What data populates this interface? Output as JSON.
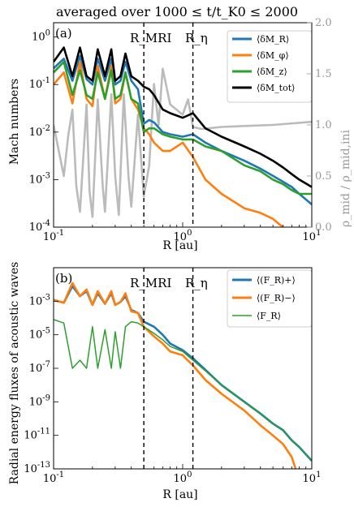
{
  "figure": {
    "title": "averaged over 1000 ≤ t/t_K0 ≤ 2000"
  },
  "chart_data": [
    {
      "panel": "(a)",
      "type": "line",
      "x_scale": "log",
      "y_scale": "log",
      "xlim": [
        0.1,
        10
      ],
      "ylim": [
        0.0001,
        2
      ],
      "y2lim": [
        0,
        2
      ],
      "xlabel": "R [au]",
      "ylabel": "Mach numbers",
      "y2label": "ρ_mid / ρ_mid,ini",
      "xticks": [
        "10^-1",
        "10^0",
        "10^1"
      ],
      "yticks": [
        "10^-4",
        "10^-3",
        "10^-2",
        "10^-1",
        "10^0"
      ],
      "y2ticks": [
        "0.0",
        "0.5",
        "1.0",
        "1.5",
        "2.0"
      ],
      "vlines": [
        {
          "label": "R_MRI",
          "x": 0.5
        },
        {
          "label": "R_η",
          "x": 1.2
        }
      ],
      "legend": "upper right",
      "series": [
        {
          "name": "⟨δM_R⟩",
          "color": "#1f77b4",
          "x": [
            0.1,
            0.12,
            0.14,
            0.16,
            0.18,
            0.2,
            0.22,
            0.25,
            0.28,
            0.3,
            0.33,
            0.36,
            0.4,
            0.45,
            0.5,
            0.55,
            0.6,
            0.7,
            0.8,
            1.0,
            1.2,
            1.5,
            2,
            3,
            4,
            5,
            6,
            7,
            8,
            10
          ],
          "y": [
            0.22,
            0.35,
            0.12,
            0.4,
            0.13,
            0.1,
            0.35,
            0.12,
            0.35,
            0.1,
            0.12,
            0.3,
            0.12,
            0.08,
            0.015,
            0.018,
            0.016,
            0.01,
            0.009,
            0.008,
            0.009,
            0.006,
            0.004,
            0.0025,
            0.0017,
            0.0012,
            0.0009,
            0.0007,
            0.0005,
            0.0003
          ]
        },
        {
          "name": "⟨δM_φ⟩",
          "color": "#ff7f0e",
          "x": [
            0.1,
            0.12,
            0.14,
            0.16,
            0.18,
            0.2,
            0.22,
            0.25,
            0.28,
            0.3,
            0.33,
            0.36,
            0.4,
            0.45,
            0.5,
            0.55,
            0.6,
            0.7,
            0.8,
            1.0,
            1.2,
            1.5,
            2,
            3,
            4,
            5,
            5.5,
            6
          ],
          "y": [
            0.1,
            0.18,
            0.04,
            0.3,
            0.05,
            0.035,
            0.25,
            0.05,
            0.25,
            0.04,
            0.05,
            0.18,
            0.05,
            0.03,
            0.012,
            0.009,
            0.006,
            0.004,
            0.004,
            0.006,
            0.003,
            0.001,
            0.0005,
            0.00025,
            0.0002,
            0.00015,
            0.00012,
            0.0001
          ]
        },
        {
          "name": "⟨δM_z⟩",
          "color": "#2ca02c",
          "x": [
            0.1,
            0.12,
            0.14,
            0.16,
            0.18,
            0.2,
            0.22,
            0.25,
            0.28,
            0.3,
            0.33,
            0.36,
            0.4,
            0.45,
            0.5,
            0.55,
            0.6,
            0.7,
            0.8,
            1.0,
            1.2,
            1.5,
            2,
            3,
            4,
            5,
            6,
            7,
            8,
            10
          ],
          "y": [
            0.18,
            0.3,
            0.06,
            0.2,
            0.06,
            0.05,
            0.18,
            0.05,
            0.2,
            0.05,
            0.06,
            0.18,
            0.05,
            0.04,
            0.01,
            0.012,
            0.012,
            0.009,
            0.008,
            0.007,
            0.007,
            0.005,
            0.004,
            0.002,
            0.0015,
            0.001,
            0.0008,
            0.0006,
            0.0005,
            0.0005
          ]
        },
        {
          "name": "⟨δM_tot⟩",
          "color": "#000000",
          "x": [
            0.1,
            0.12,
            0.14,
            0.16,
            0.18,
            0.2,
            0.22,
            0.25,
            0.28,
            0.3,
            0.33,
            0.36,
            0.4,
            0.45,
            0.5,
            0.55,
            0.6,
            0.7,
            0.8,
            1.0,
            1.2,
            1.5,
            2,
            3,
            4,
            5,
            6,
            7,
            8,
            10
          ],
          "y": [
            0.3,
            0.6,
            0.15,
            0.6,
            0.15,
            0.12,
            0.55,
            0.15,
            0.55,
            0.12,
            0.15,
            0.45,
            0.15,
            0.12,
            0.09,
            0.08,
            0.06,
            0.03,
            0.025,
            0.02,
            0.025,
            0.012,
            0.008,
            0.005,
            0.0035,
            0.0025,
            0.0018,
            0.0013,
            0.001,
            0.0007
          ]
        },
        {
          "name": "ρ_mid/ρ_mid,ini",
          "color": "#bbbbbb",
          "axis": "right",
          "x": [
            0.1,
            0.12,
            0.13,
            0.14,
            0.15,
            0.16,
            0.18,
            0.19,
            0.2,
            0.22,
            0.24,
            0.25,
            0.28,
            0.3,
            0.32,
            0.35,
            0.38,
            0.4,
            0.45,
            0.5,
            0.55,
            0.6,
            0.65,
            0.7,
            0.8,
            1.0,
            1.1,
            1.2,
            1.4,
            2,
            3,
            5,
            10
          ],
          "y": [
            1.0,
            0.5,
            0.9,
            1.15,
            0.4,
            0.15,
            1.2,
            0.35,
            0.1,
            1.25,
            0.4,
            0.15,
            1.3,
            0.5,
            0.12,
            1.3,
            0.5,
            0.2,
            1.1,
            0.3,
            0.6,
            1.4,
            1.0,
            1.55,
            1.2,
            1.1,
            1.25,
            0.98,
            0.96,
            0.98,
            0.99,
            1.0,
            1.03
          ]
        }
      ]
    },
    {
      "panel": "(b)",
      "type": "line",
      "x_scale": "log",
      "y_scale": "log",
      "xlim": [
        0.1,
        10
      ],
      "ylim": [
        1e-13,
        0.1
      ],
      "xlabel": "R [au]",
      "ylabel": "Radial energy fluxes of acoustic waves",
      "xticks": [
        "10^-1",
        "10^0",
        "10^1"
      ],
      "yticks": [
        "10^-13",
        "10^-11",
        "10^-9",
        "10^-7",
        "10^-5",
        "10^-3"
      ],
      "vlines": [
        {
          "label": "R_MRI",
          "x": 0.5
        },
        {
          "label": "R_η",
          "x": 1.2
        }
      ],
      "legend": "upper right",
      "series": [
        {
          "name": "⟨(F_R)+⟩",
          "color": "#1f77b4",
          "x": [
            0.1,
            0.12,
            0.14,
            0.16,
            0.18,
            0.2,
            0.22,
            0.25,
            0.28,
            0.3,
            0.33,
            0.36,
            0.4,
            0.45,
            0.5,
            0.6,
            0.7,
            0.8,
            1.0,
            1.2,
            1.5,
            2,
            3,
            4,
            5,
            6,
            7,
            8,
            10
          ],
          "y": [
            0.0012,
            0.0008,
            0.008,
            0.002,
            0.004,
            0.0006,
            0.003,
            0.0007,
            0.003,
            0.0006,
            0.0009,
            0.002,
            0.0003,
            0.0002,
            6e-05,
            3e-05,
            1e-05,
            3e-06,
            1.2e-06,
            4e-07,
            8e-08,
            1e-08,
            1e-09,
            2e-10,
            5e-11,
            2e-11,
            5e-12,
            2e-12,
            3e-13
          ]
        },
        {
          "name": "⟨(F_R)−⟩",
          "color": "#ff7f0e",
          "x": [
            0.1,
            0.12,
            0.14,
            0.16,
            0.18,
            0.2,
            0.22,
            0.25,
            0.28,
            0.3,
            0.33,
            0.36,
            0.4,
            0.45,
            0.5,
            0.6,
            0.7,
            0.8,
            1.0,
            1.2,
            1.5,
            2,
            3,
            4,
            5,
            6,
            7,
            7.5
          ],
          "y": [
            0.0012,
            0.0008,
            0.012,
            0.002,
            0.005,
            0.0006,
            0.004,
            0.0007,
            0.004,
            0.0006,
            0.0009,
            0.003,
            0.00025,
            0.0002,
            3e-05,
            8e-06,
            3e-06,
            1e-06,
            6e-07,
            1.5e-07,
            2e-08,
            3e-09,
            3e-10,
            4e-11,
            1e-11,
            3e-12,
            5e-13,
            1e-13
          ]
        },
        {
          "name": "⟨F_R⟩",
          "color": "#2ca02c",
          "x": [
            0.1,
            0.12,
            0.14,
            0.16,
            0.18,
            0.2,
            0.22,
            0.25,
            0.28,
            0.3,
            0.33,
            0.36,
            0.4,
            0.45,
            0.5,
            0.6,
            0.7,
            0.8,
            1.0,
            1.2,
            1.5,
            2,
            3,
            4,
            5,
            6,
            7,
            8,
            10
          ],
          "y": [
            8e-05,
            5e-05,
            1e-07,
            3e-07,
            1e-07,
            3e-05,
            1e-07,
            2e-05,
            1e-07,
            1.5e-05,
            1e-07,
            3e-05,
            6e-05,
            5e-05,
            3e-05,
            1.2e-05,
            5e-06,
            2e-06,
            1e-06,
            3e-07,
            7e-08,
            1e-08,
            1e-09,
            2e-10,
            5e-11,
            2e-11,
            5e-12,
            2e-12,
            3e-13
          ]
        }
      ]
    }
  ]
}
